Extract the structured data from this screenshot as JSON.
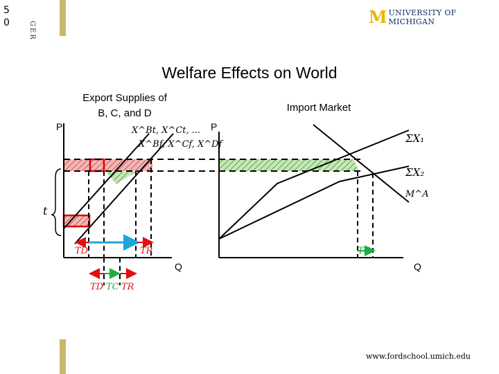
{
  "slide_number": "5\n0",
  "side_label": "GER",
  "university": {
    "mark": "M",
    "name": "UNIVERSITY OF MICHIGAN"
  },
  "title": "Welfare Effects on World",
  "left_panel": {
    "heading_line1": "Export Supplies of",
    "heading_line2": "B, C, and D",
    "p_axis": "P",
    "q_axis": "Q",
    "supply_label_top": "X^Bt, X^Ct, ...",
    "supply_label_bottom": "X^Bf, X^Cf, X^Df",
    "tariff_label": "t",
    "td_label": "TD",
    "tr_label": "TR",
    "bottom_labels": [
      "TD",
      "TC",
      "TR"
    ]
  },
  "right_panel": {
    "heading": "Import Market",
    "p_axis": "P",
    "q_axis": "Q",
    "curve1": "ΣX₁",
    "curve2": "ΣX₂",
    "demand": "M^A",
    "tc_label": "TC"
  },
  "colors": {
    "red_fill": "#f4b6b6",
    "red_border": "#e00000",
    "green_fill": "#c6e8b5",
    "green_arrow": "#22aa44",
    "blue_arrow": "#1ea6d8",
    "red_arrow": "#e01010",
    "gold": "#c9b76a"
  },
  "footer": {
    "url": "www.fordschool.umich.edu"
  }
}
